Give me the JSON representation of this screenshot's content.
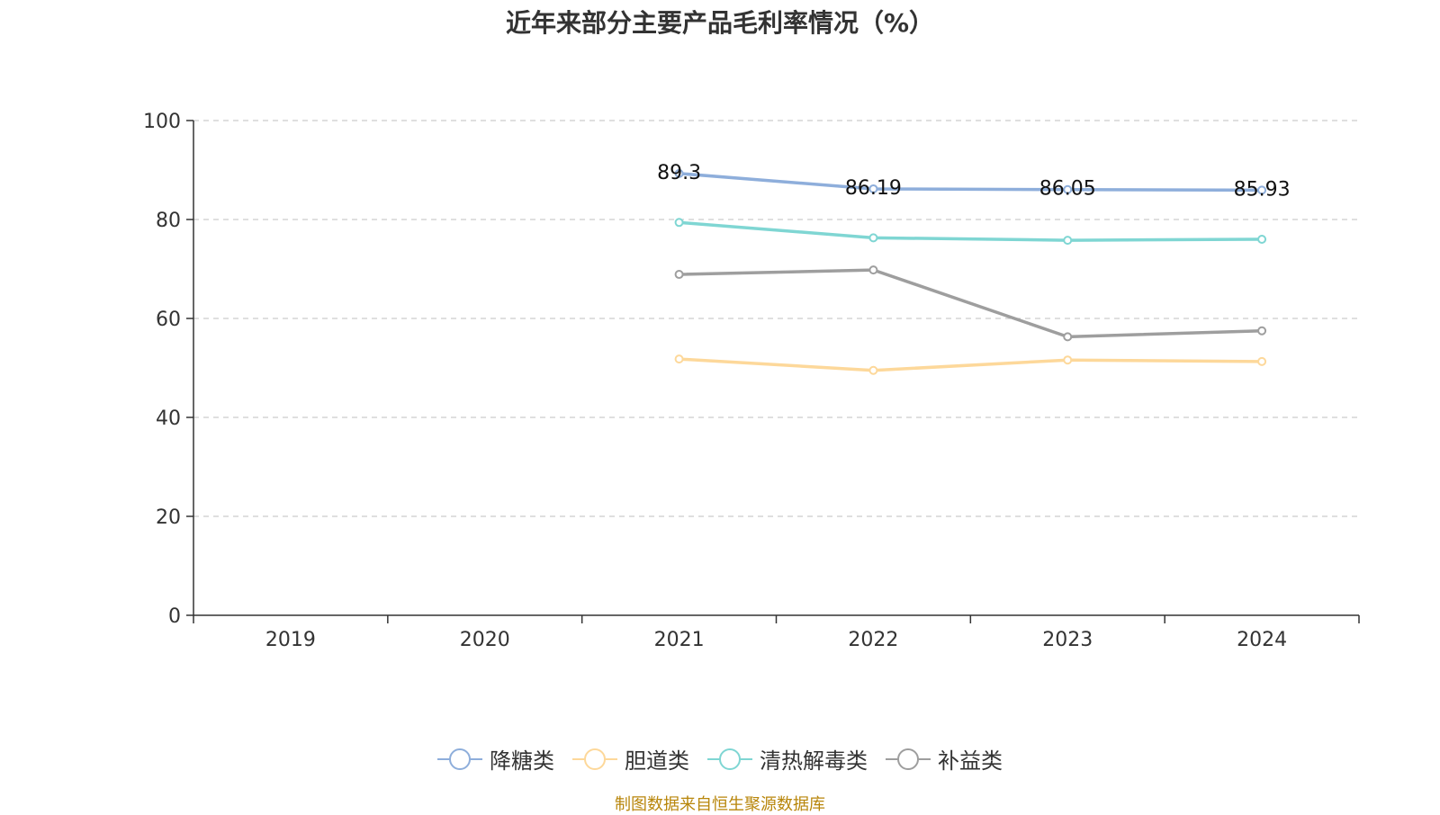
{
  "title": "近年来部分主要产品毛利率情况（%）",
  "source": "制图数据来自恒生聚源数据库",
  "chart_data": {
    "type": "line",
    "title": "近年来部分主要产品毛利率情况（%）",
    "categories": [
      "2019",
      "2020",
      "2021",
      "2022",
      "2023",
      "2024"
    ],
    "ylim": [
      0,
      100
    ],
    "yticks": [
      0,
      20,
      40,
      60,
      80,
      100
    ],
    "grid": true,
    "legend_position": "bottom",
    "series": [
      {
        "name": "降糖类",
        "color": "#8eaedb",
        "values": [
          null,
          null,
          89.3,
          86.19,
          86.05,
          85.93
        ],
        "labels": true
      },
      {
        "name": "胆道类",
        "color": "#fdd89a",
        "values": [
          null,
          null,
          51.8,
          49.5,
          51.6,
          51.3
        ],
        "labels": false
      },
      {
        "name": "清热解毒类",
        "color": "#7fd6d3",
        "values": [
          null,
          null,
          79.4,
          76.3,
          75.8,
          76.0
        ],
        "labels": false
      },
      {
        "name": "补益类",
        "color": "#9e9e9e",
        "values": [
          null,
          null,
          68.9,
          69.8,
          56.3,
          57.5
        ],
        "labels": false
      }
    ]
  }
}
